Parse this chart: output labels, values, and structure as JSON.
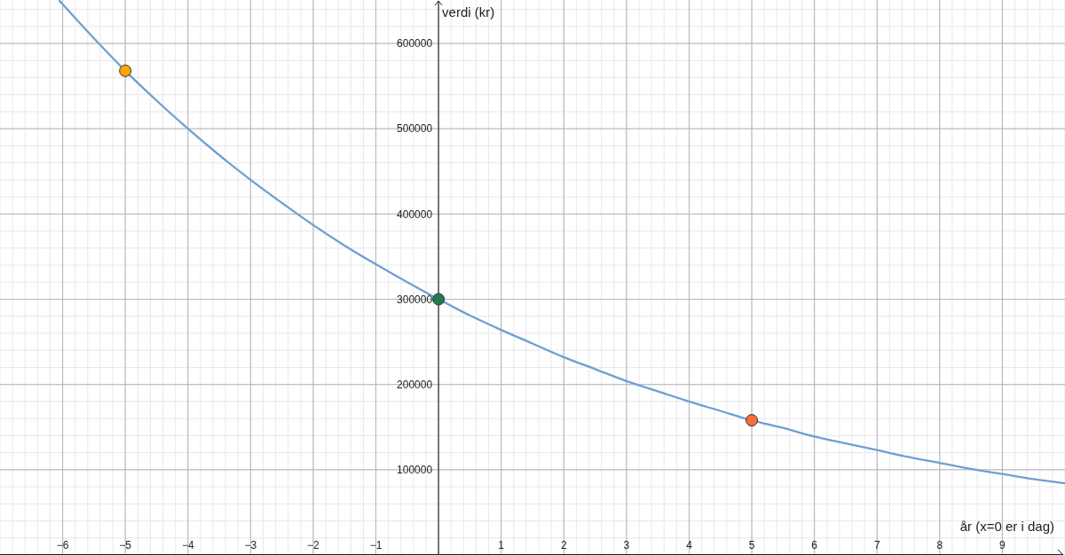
{
  "chart_data": {
    "type": "line",
    "xlabel": "år (x=0 er i dag)",
    "ylabel": "verdi (kr)",
    "xlim": [
      -7,
      10
    ],
    "ylim": [
      0,
      651000
    ],
    "xticks": [
      -6,
      -5,
      -4,
      -3,
      -2,
      -1,
      1,
      2,
      3,
      4,
      5,
      6,
      7,
      8,
      9
    ],
    "yticks": [
      100000,
      200000,
      300000,
      400000,
      500000,
      600000
    ],
    "grid": true,
    "series": [
      {
        "color": "#6f9fd3",
        "x": [
          -6.05,
          -6,
          -5.5,
          -5,
          -4.5,
          -4,
          -3.5,
          -3,
          -2.5,
          -2,
          -1.5,
          -1,
          -0.5,
          0,
          0.5,
          1,
          1.5,
          2,
          2.5,
          3,
          3.5,
          4,
          4.5,
          5,
          5.5,
          6,
          6.5,
          7,
          7.5,
          8,
          8.5,
          9,
          9.5,
          10
        ],
        "values": [
          650000,
          646000,
          606000,
          568000,
          533000,
          500000,
          469000,
          440000,
          413000,
          387000,
          363000,
          341000,
          320000,
          300000,
          281000,
          264000,
          248000,
          232000,
          218000,
          204000,
          192000,
          180000,
          169000,
          158000,
          149000,
          139000,
          131000,
          123000,
          115000,
          108000,
          101000,
          95000,
          89000,
          84000
        ]
      },
      {
        "type": "scatter",
        "marker": "circle",
        "colors": [
          "#ffa500",
          "#237a4f",
          "#ff6a3c"
        ],
        "x": [
          -5,
          0,
          5
        ],
        "values": [
          568000,
          300000,
          158000
        ]
      }
    ]
  }
}
